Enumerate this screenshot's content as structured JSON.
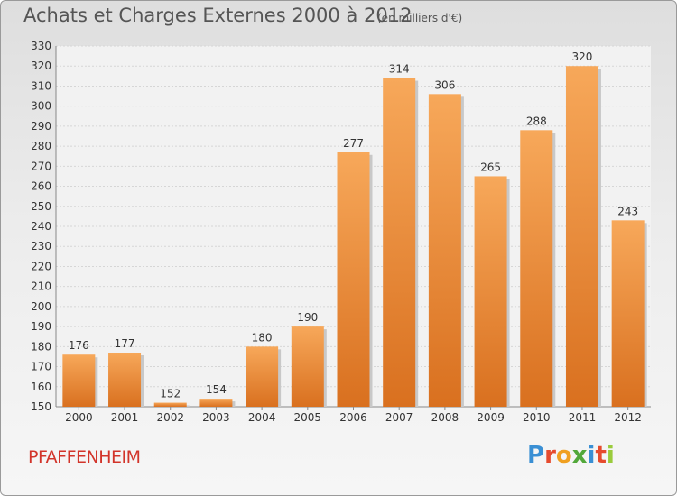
{
  "header": {
    "title": "Achats et Charges Externes 2000 à 2012",
    "subtitle": "(en milliers d'€)"
  },
  "commune": "PFAFFENHEIM",
  "logo": "Proxiti",
  "colors": {
    "bar_top": "#f7a85a",
    "bar_bottom": "#d9701f",
    "label": "#333333"
  },
  "chart_data": {
    "type": "bar",
    "categories": [
      "2000",
      "2001",
      "2002",
      "2003",
      "2004",
      "2005",
      "2006",
      "2007",
      "2008",
      "2009",
      "2010",
      "2011",
      "2012"
    ],
    "values": [
      176,
      177,
      152,
      154,
      180,
      190,
      277,
      314,
      306,
      265,
      288,
      320,
      243
    ],
    "ylim": [
      150,
      330
    ],
    "yticks": [
      150,
      160,
      170,
      180,
      190,
      200,
      210,
      220,
      230,
      240,
      250,
      260,
      270,
      280,
      290,
      300,
      310,
      320,
      330
    ],
    "grid": true,
    "data_labels": true
  }
}
